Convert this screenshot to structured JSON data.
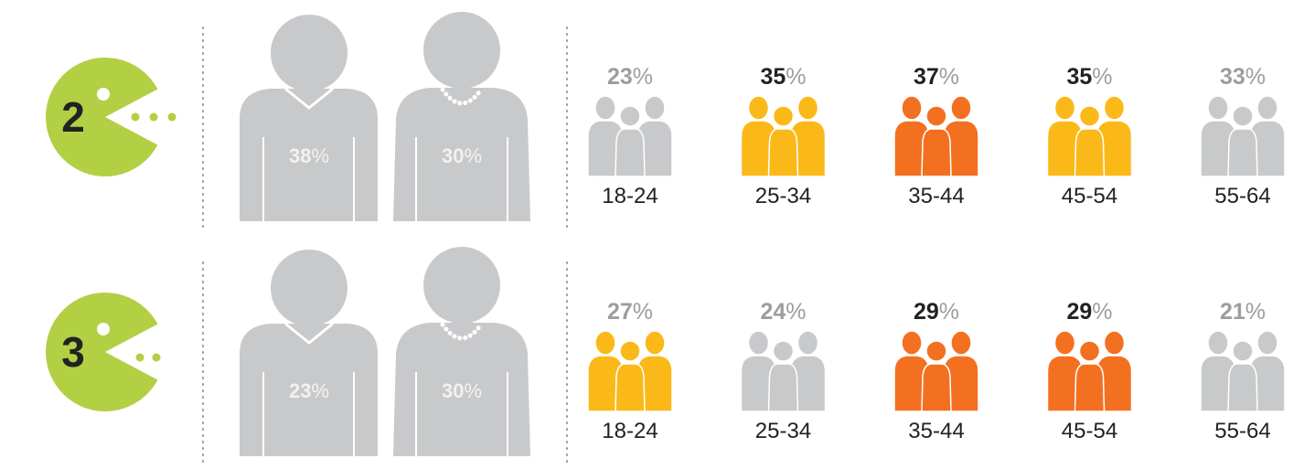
{
  "rows": [
    {
      "rank": "2",
      "gender": [
        {
          "value": 38,
          "unit": "%"
        },
        {
          "value": 30,
          "unit": "%"
        }
      ],
      "ages": [
        {
          "range": "18-24",
          "value": 23,
          "unit": "%",
          "color": "#c8c9cb",
          "label_color": "#9d9d9e"
        },
        {
          "range": "25-34",
          "value": 35,
          "unit": "%",
          "color": "#fbb919",
          "label_color": "#222222"
        },
        {
          "range": "35-44",
          "value": 37,
          "unit": "%",
          "color": "#f37021",
          "label_color": "#222222"
        },
        {
          "range": "45-54",
          "value": 35,
          "unit": "%",
          "color": "#fbb919",
          "label_color": "#222222"
        },
        {
          "range": "55-64",
          "value": 33,
          "unit": "%",
          "color": "#c8c9cb",
          "label_color": "#9d9d9e"
        }
      ]
    },
    {
      "rank": "3",
      "gender": [
        {
          "value": 23,
          "unit": "%"
        },
        {
          "value": 30,
          "unit": "%"
        }
      ],
      "ages": [
        {
          "range": "18-24",
          "value": 27,
          "unit": "%",
          "color": "#fbb919",
          "label_color": "#9d9d9e"
        },
        {
          "range": "25-34",
          "value": 24,
          "unit": "%",
          "color": "#c8c9cb",
          "label_color": "#9d9d9e"
        },
        {
          "range": "35-44",
          "value": 29,
          "unit": "%",
          "color": "#f37021",
          "label_color": "#222222"
        },
        {
          "range": "45-54",
          "value": 29,
          "unit": "%",
          "color": "#f37021",
          "label_color": "#222222"
        },
        {
          "range": "55-64",
          "value": 21,
          "unit": "%",
          "color": "#c8c9cb",
          "label_color": "#9d9d9e"
        }
      ]
    }
  ]
}
